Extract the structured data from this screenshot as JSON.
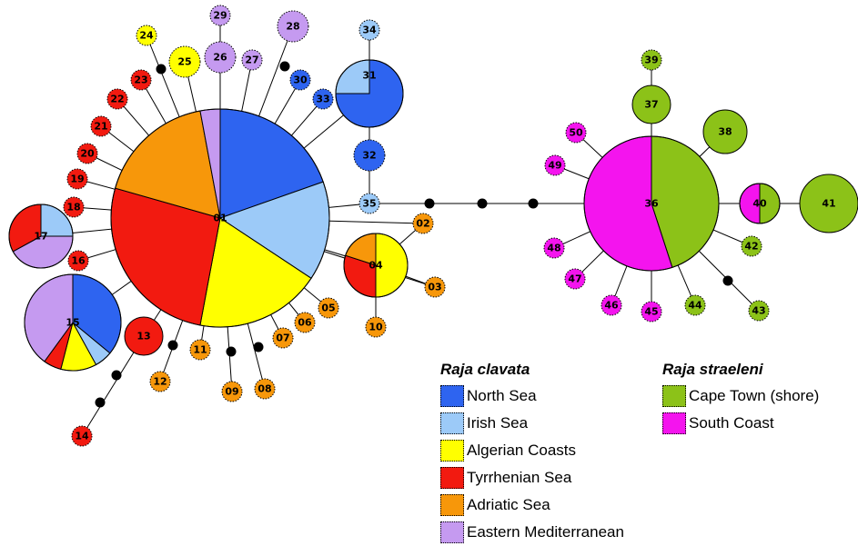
{
  "colors": {
    "north_sea": "#2e64f0",
    "irish_sea": "#9ccaf8",
    "algerian": "#ffff00",
    "tyrrhenian": "#f21a10",
    "adriatic": "#f7970a",
    "eastern_med": "#c59af0",
    "cape_town": "#8cc218",
    "south_coast": "#f414ee",
    "intermediate": "#000000"
  },
  "legend": {
    "clavata": {
      "title": "Raja clavata",
      "items": [
        {
          "label": "North Sea",
          "color": "north_sea"
        },
        {
          "label": "Irish Sea",
          "color": "irish_sea"
        },
        {
          "label": "Algerian Coasts",
          "color": "algerian"
        },
        {
          "label": "Tyrrhenian Sea",
          "color": "tyrrhenian"
        },
        {
          "label": "Adriatic Sea",
          "color": "adriatic"
        },
        {
          "label": "Eastern Mediterranean",
          "color": "eastern_med"
        }
      ]
    },
    "straeleni": {
      "title": "Raja straeleni",
      "items": [
        {
          "label": "Cape Town (shore)",
          "color": "cape_town"
        },
        {
          "label": "South Coast",
          "color": "south_coast"
        }
      ]
    }
  },
  "haplotypes": [
    {
      "id": "01",
      "color": "north_sea",
      "pie": [
        [
          "north_sea",
          20
        ],
        [
          "irish_sea",
          15
        ],
        [
          "algerian",
          19
        ],
        [
          "tyrrhenian",
          27
        ],
        [
          "adriatic",
          18
        ],
        [
          "eastern_med",
          3
        ]
      ]
    },
    {
      "id": "02",
      "color": "adriatic"
    },
    {
      "id": "03",
      "color": "adriatic"
    },
    {
      "id": "04",
      "color": "algerian",
      "pie": [
        [
          "algerian",
          50
        ],
        [
          "tyrrhenian",
          30
        ],
        [
          "adriatic",
          20
        ]
      ]
    },
    {
      "id": "05",
      "color": "adriatic"
    },
    {
      "id": "06",
      "color": "adriatic"
    },
    {
      "id": "07",
      "color": "adriatic"
    },
    {
      "id": "08",
      "color": "adriatic"
    },
    {
      "id": "09",
      "color": "adriatic"
    },
    {
      "id": "10",
      "color": "adriatic"
    },
    {
      "id": "11",
      "color": "adriatic"
    },
    {
      "id": "12",
      "color": "adriatic"
    },
    {
      "id": "13",
      "color": "tyrrhenian"
    },
    {
      "id": "14",
      "color": "tyrrhenian"
    },
    {
      "id": "15",
      "color": "north_sea",
      "pie": [
        [
          "north_sea",
          36
        ],
        [
          "irish_sea",
          6
        ],
        [
          "algerian",
          12
        ],
        [
          "tyrrhenian",
          6
        ],
        [
          "eastern_med",
          40
        ]
      ]
    },
    {
      "id": "16",
      "color": "tyrrhenian"
    },
    {
      "id": "17",
      "color": "irish_sea",
      "pie": [
        [
          "irish_sea",
          25
        ],
        [
          "eastern_med",
          42
        ],
        [
          "tyrrhenian",
          33
        ]
      ]
    },
    {
      "id": "18",
      "color": "tyrrhenian"
    },
    {
      "id": "19",
      "color": "tyrrhenian"
    },
    {
      "id": "20",
      "color": "tyrrhenian"
    },
    {
      "id": "21",
      "color": "tyrrhenian"
    },
    {
      "id": "22",
      "color": "tyrrhenian"
    },
    {
      "id": "23",
      "color": "tyrrhenian"
    },
    {
      "id": "24",
      "color": "algerian"
    },
    {
      "id": "25",
      "color": "algerian"
    },
    {
      "id": "26",
      "color": "eastern_med"
    },
    {
      "id": "27",
      "color": "eastern_med"
    },
    {
      "id": "28",
      "color": "eastern_med"
    },
    {
      "id": "29",
      "color": "eastern_med"
    },
    {
      "id": "30",
      "color": "north_sea"
    },
    {
      "id": "31",
      "color": "north_sea",
      "pie": [
        [
          "north_sea",
          75
        ],
        [
          "irish_sea",
          25
        ]
      ]
    },
    {
      "id": "32",
      "color": "north_sea"
    },
    {
      "id": "33",
      "color": "north_sea"
    },
    {
      "id": "34",
      "color": "irish_sea"
    },
    {
      "id": "35",
      "color": "irish_sea"
    },
    {
      "id": "36",
      "color": "cape_town",
      "pie": [
        [
          "cape_town",
          45
        ],
        [
          "south_coast",
          55
        ]
      ]
    },
    {
      "id": "37",
      "color": "cape_town"
    },
    {
      "id": "38",
      "color": "cape_town"
    },
    {
      "id": "39",
      "color": "cape_town"
    },
    {
      "id": "40",
      "color": "cape_town",
      "pie": [
        [
          "cape_town",
          50
        ],
        [
          "south_coast",
          50
        ]
      ]
    },
    {
      "id": "41",
      "color": "cape_town"
    },
    {
      "id": "42",
      "color": "cape_town"
    },
    {
      "id": "43",
      "color": "cape_town"
    },
    {
      "id": "44",
      "color": "cape_town"
    },
    {
      "id": "45",
      "color": "south_coast"
    },
    {
      "id": "46",
      "color": "south_coast"
    },
    {
      "id": "47",
      "color": "south_coast"
    },
    {
      "id": "48",
      "color": "south_coast"
    },
    {
      "id": "49",
      "color": "south_coast"
    },
    {
      "id": "50",
      "color": "south_coast"
    }
  ],
  "links": [
    [
      "01",
      "02"
    ],
    [
      "01",
      "03"
    ],
    [
      "01",
      "04"
    ],
    [
      "01",
      "05"
    ],
    [
      "01",
      "06"
    ],
    [
      "01",
      "07"
    ],
    [
      "01",
      "08"
    ],
    [
      "01",
      "09"
    ],
    [
      "01",
      "11"
    ],
    [
      "01",
      "12"
    ],
    [
      "01",
      "13"
    ],
    [
      "01",
      "15"
    ],
    [
      "01",
      "16"
    ],
    [
      "01",
      "17"
    ],
    [
      "01",
      "18"
    ],
    [
      "01",
      "19"
    ],
    [
      "01",
      "20"
    ],
    [
      "01",
      "21"
    ],
    [
      "01",
      "22"
    ],
    [
      "01",
      "23"
    ],
    [
      "01",
      "24"
    ],
    [
      "01",
      "25"
    ],
    [
      "01",
      "26"
    ],
    [
      "01",
      "27"
    ],
    [
      "01",
      "28"
    ],
    [
      "01",
      "30"
    ],
    [
      "01",
      "31"
    ],
    [
      "01",
      "33"
    ],
    [
      "01",
      "35"
    ],
    [
      "04",
      "02"
    ],
    [
      "04",
      "03"
    ],
    [
      "04",
      "10"
    ],
    [
      "26",
      "29"
    ],
    [
      "31",
      "34"
    ],
    [
      "31",
      "32"
    ],
    [
      "32",
      "35"
    ],
    [
      "13",
      "14"
    ],
    [
      "35",
      "36"
    ],
    [
      "36",
      "37"
    ],
    [
      "36",
      "38"
    ],
    [
      "36",
      "40"
    ],
    [
      "36",
      "42"
    ],
    [
      "36",
      "43"
    ],
    [
      "36",
      "44"
    ],
    [
      "36",
      "45"
    ],
    [
      "36",
      "46"
    ],
    [
      "36",
      "47"
    ],
    [
      "36",
      "48"
    ],
    [
      "36",
      "49"
    ],
    [
      "36",
      "50"
    ],
    [
      "37",
      "39"
    ],
    [
      "40",
      "41"
    ]
  ]
}
